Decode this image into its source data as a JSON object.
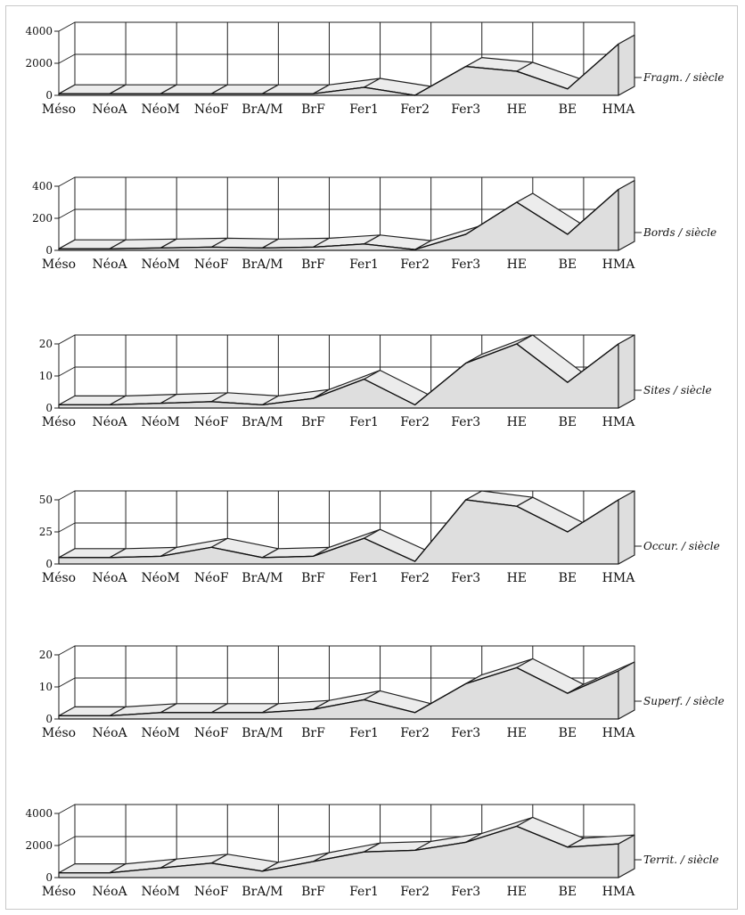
{
  "chart_data": [
    {
      "type": "area",
      "title": "",
      "categories": [
        "Méso",
        "NéoA",
        "NéoM",
        "NéoF",
        "BrA/M",
        "BrF",
        "Fer1",
        "Fer2",
        "Fer3",
        "HE",
        "BE",
        "HMA"
      ],
      "values": [
        100,
        100,
        100,
        100,
        100,
        100,
        500,
        0,
        1800,
        1500,
        400,
        3200
      ],
      "ylim": [
        0,
        4000
      ],
      "yticks": [
        "4000",
        "2000",
        "0"
      ],
      "yticks_values": [
        4000,
        2000,
        0
      ],
      "side_label": "Fragm. / siècle"
    },
    {
      "type": "area",
      "title": "",
      "categories": [
        "Méso",
        "NéoA",
        "NéoM",
        "NéoF",
        "BrA/M",
        "BrF",
        "Fer1",
        "Fer2",
        "Fer3",
        "HE",
        "BE",
        "HMA"
      ],
      "values": [
        10,
        10,
        15,
        20,
        15,
        20,
        40,
        5,
        100,
        300,
        100,
        380
      ],
      "ylim": [
        0,
        400
      ],
      "yticks": [
        "400",
        "200",
        "0"
      ],
      "yticks_values": [
        400,
        200,
        0
      ],
      "side_label": "Bords / siècle"
    },
    {
      "type": "area",
      "title": "",
      "categories": [
        "Méso",
        "NéoA",
        "NéoM",
        "NéoF",
        "BrA/M",
        "BrF",
        "Fer1",
        "Fer2",
        "Fer3",
        "HE",
        "BE",
        "HMA"
      ],
      "values": [
        1,
        1,
        1.5,
        2,
        1,
        3,
        9,
        1,
        14,
        20,
        8,
        20
      ],
      "ylim": [
        0,
        20
      ],
      "yticks": [
        "20",
        "10",
        "0"
      ],
      "yticks_values": [
        20,
        10,
        0
      ],
      "side_label": "Sites / siècle"
    },
    {
      "type": "area",
      "title": "",
      "categories": [
        "Méso",
        "NéoA",
        "NéoM",
        "NéoF",
        "BrA/M",
        "BrF",
        "Fer1",
        "Fer2",
        "Fer3",
        "HE",
        "BE",
        "HMA"
      ],
      "values": [
        5,
        5,
        6,
        13,
        5,
        6,
        20,
        2,
        50,
        45,
        25,
        50
      ],
      "ylim": [
        0,
        50
      ],
      "yticks": [
        "50",
        "25",
        "0"
      ],
      "yticks_values": [
        50,
        25,
        0
      ],
      "side_label": "Occur. / siècle"
    },
    {
      "type": "area",
      "title": "",
      "categories": [
        "Méso",
        "NéoA",
        "NéoM",
        "NéoF",
        "BrA/M",
        "BrF",
        "Fer1",
        "Fer2",
        "Fer3",
        "HE",
        "BE",
        "HMA"
      ],
      "values": [
        1,
        1,
        2,
        2,
        2,
        3,
        6,
        2,
        11,
        16,
        8,
        15
      ],
      "ylim": [
        0,
        20
      ],
      "yticks": [
        "20",
        "10",
        "0"
      ],
      "yticks_values": [
        20,
        10,
        0
      ],
      "side_label": "Superf. / siècle"
    },
    {
      "type": "area",
      "title": "",
      "categories": [
        "Méso",
        "NéoA",
        "NéoM",
        "NéoF",
        "BrA/M",
        "BrF",
        "Fer1",
        "Fer2",
        "Fer3",
        "HE",
        "BE",
        "HMA"
      ],
      "values": [
        300,
        300,
        600,
        900,
        400,
        1000,
        1600,
        1700,
        2200,
        3200,
        1900,
        2100
      ],
      "ylim": [
        0,
        4000
      ],
      "yticks": [
        "4000",
        "2000",
        "0"
      ],
      "yticks_values": [
        4000,
        2000,
        0
      ],
      "side_label": "Territ. / siècle"
    }
  ]
}
